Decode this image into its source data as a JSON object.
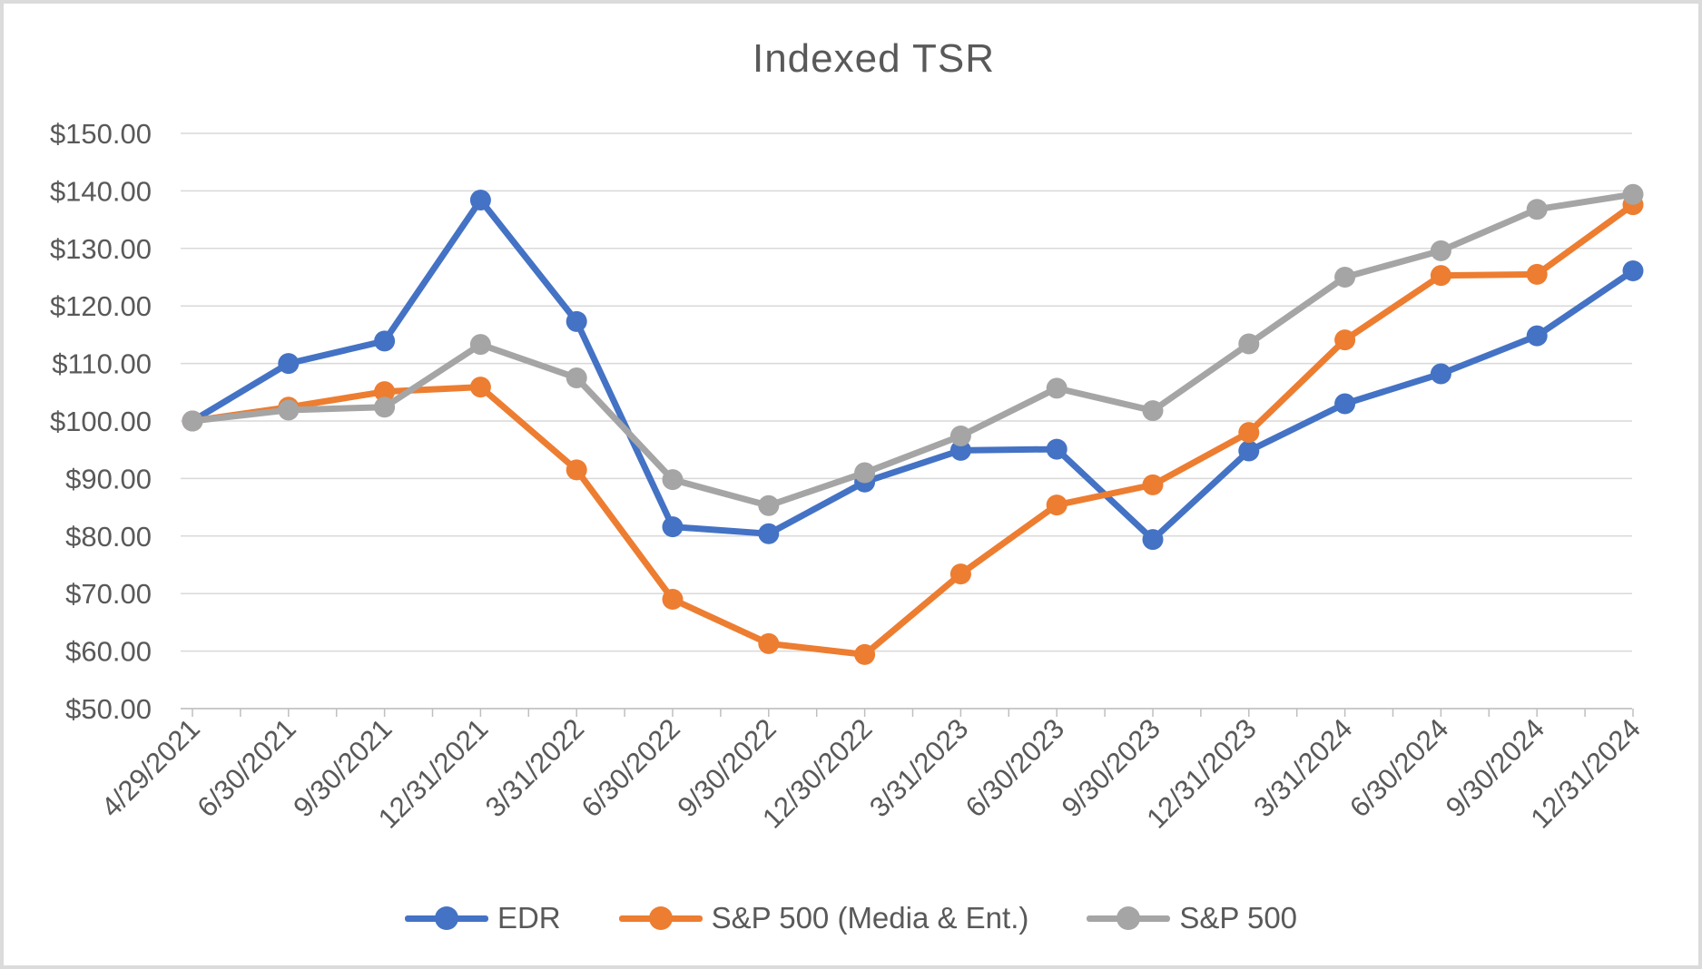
{
  "chart_data": {
    "type": "line",
    "title": "Indexed TSR",
    "xlabel": "",
    "ylabel": "",
    "ylim": [
      50,
      150
    ],
    "grid": "on",
    "legend_position": "bottom",
    "grid_color": "#D9D9D9",
    "axis_color": "#BFBFBF",
    "axis_text_color": "#595959",
    "title_color": "#595959",
    "categories": [
      "4/29/2021",
      "6/30/2021",
      "9/30/2021",
      "12/31/2021",
      "3/31/2022",
      "6/30/2022",
      "9/30/2022",
      "12/30/2022",
      "3/31/2023",
      "6/30/2023",
      "9/30/2023",
      "12/31/2023",
      "3/31/2024",
      "6/30/2024",
      "9/30/2024",
      "12/31/2024"
    ],
    "y_ticks": [
      {
        "value": 150,
        "label": "$150.00"
      },
      {
        "value": 140,
        "label": "$140.00"
      },
      {
        "value": 130,
        "label": "$130.00"
      },
      {
        "value": 120,
        "label": "$120.00"
      },
      {
        "value": 110,
        "label": "$110.00"
      },
      {
        "value": 100,
        "label": "$100.00"
      },
      {
        "value": 90,
        "label": "$90.00"
      },
      {
        "value": 80,
        "label": "$80.00"
      },
      {
        "value": 70,
        "label": "$70.00"
      },
      {
        "value": 60,
        "label": "$60.00"
      },
      {
        "value": 50,
        "label": "$50.00"
      }
    ],
    "series": [
      {
        "id": "edr",
        "name": "EDR",
        "color": "#4472C4",
        "values": [
          100,
          110.0,
          113.9,
          138.4,
          117.3,
          81.6,
          80.4,
          89.4,
          94.9,
          95.1,
          79.4,
          94.8,
          103.0,
          108.2,
          114.8,
          126.1
        ]
      },
      {
        "id": "sp500-media-ent",
        "name": "S&P 500 (Media & Ent.)",
        "color": "#ED7D31",
        "values": [
          100,
          102.4,
          105.1,
          105.9,
          91.5,
          69.0,
          61.3,
          59.4,
          73.4,
          85.4,
          88.9,
          98.0,
          114.1,
          125.3,
          125.5,
          137.6
        ]
      },
      {
        "id": "sp500",
        "name": "S&P 500",
        "color": "#A5A5A5",
        "values": [
          100,
          101.9,
          102.4,
          113.3,
          107.5,
          89.8,
          85.3,
          91.0,
          97.4,
          105.7,
          101.8,
          113.4,
          125.0,
          129.6,
          136.8,
          139.4
        ]
      }
    ]
  }
}
